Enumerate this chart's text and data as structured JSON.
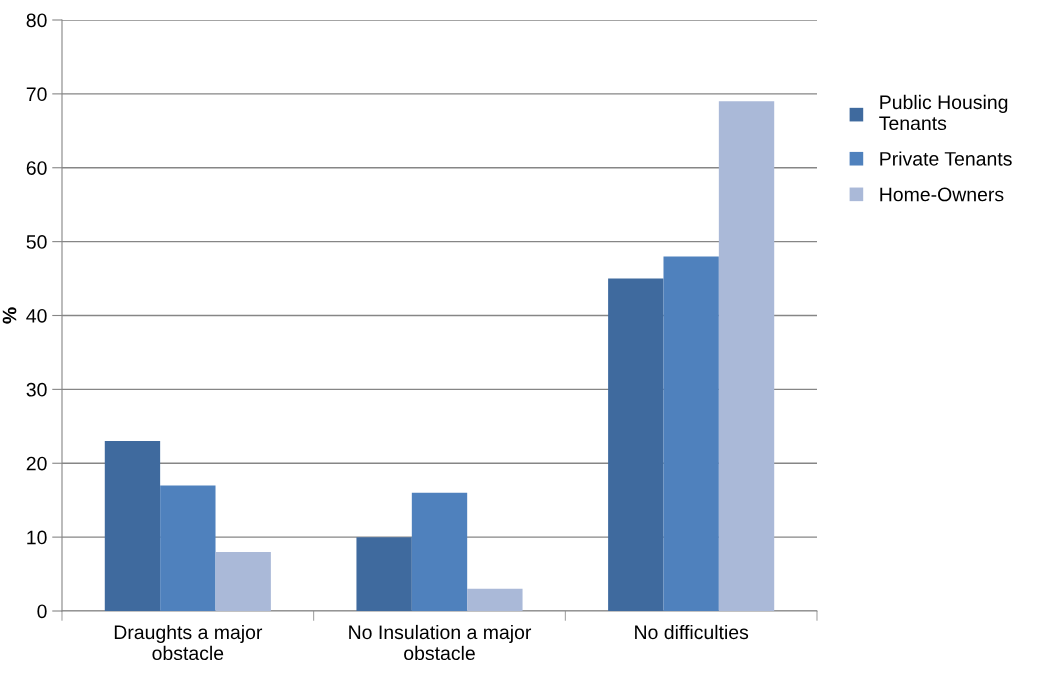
{
  "chart_data": {
    "type": "bar",
    "ylabel": "%",
    "categories": [
      "Draughts a major\nobstacle",
      "No Insulation a major\nobstacle",
      "No difficulties"
    ],
    "series": [
      {
        "name": "Public Housing\nTenants",
        "color": "#3f6a9e",
        "values": [
          23,
          10,
          45
        ]
      },
      {
        "name": "Private Tenants",
        "color": "#4f81bd",
        "values": [
          17,
          16,
          48
        ]
      },
      {
        "name": "Home-Owners",
        "color": "#aab9d8",
        "values": [
          8,
          3,
          69
        ]
      }
    ],
    "ylim": [
      0,
      80
    ],
    "yticks": [
      0,
      10,
      20,
      30,
      40,
      50,
      60,
      70,
      80
    ],
    "grid": "y",
    "legend": "right"
  }
}
